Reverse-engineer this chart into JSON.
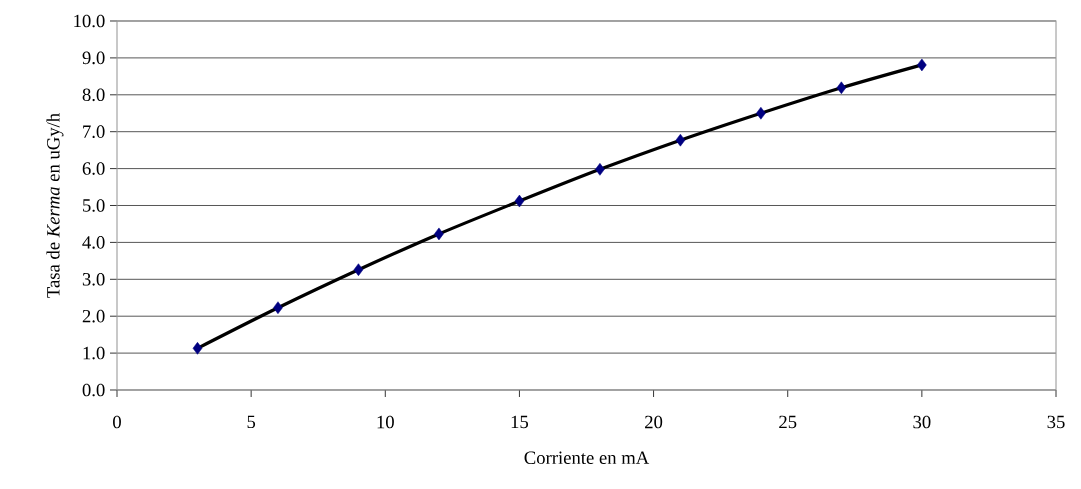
{
  "chart_data": {
    "type": "line",
    "xlabel": "Corriente en mA",
    "ylabel": "Tasa de *Kerma* en uGy/h",
    "x": [
      3,
      6,
      9,
      12,
      15,
      18,
      21,
      24,
      27,
      30
    ],
    "series": [
      {
        "color": "#000000",
        "marker": "none",
        "values": [
          1.13,
          2.23,
          3.26,
          4.23,
          5.12,
          5.98,
          6.77,
          7.5,
          8.19,
          8.81
        ]
      },
      {
        "type": "scatter",
        "color": "#000080",
        "marker": "diamond",
        "values": [
          1.13,
          2.23,
          3.26,
          4.23,
          5.12,
          5.98,
          6.77,
          7.5,
          8.19,
          8.81
        ]
      }
    ],
    "xlim": [
      0,
      35
    ],
    "xticks": [
      0,
      5,
      10,
      15,
      20,
      25,
      30,
      35
    ],
    "ylim": [
      0,
      10
    ],
    "yticks": [
      {
        "value": 0,
        "label": "0.0"
      },
      {
        "value": 1,
        "label": "1.0"
      },
      {
        "value": 2,
        "label": "2.0"
      },
      {
        "value": 3,
        "label": "3.0"
      },
      {
        "value": 4,
        "label": "4.0"
      },
      {
        "value": 5,
        "label": "5.0"
      },
      {
        "value": 6,
        "label": "6.0"
      },
      {
        "value": 7,
        "label": "7.0"
      },
      {
        "value": 8,
        "label": "8.0"
      },
      {
        "value": 9,
        "label": "9.0"
      },
      {
        "value": 10,
        "label": "10.0"
      }
    ],
    "grid": "y"
  }
}
